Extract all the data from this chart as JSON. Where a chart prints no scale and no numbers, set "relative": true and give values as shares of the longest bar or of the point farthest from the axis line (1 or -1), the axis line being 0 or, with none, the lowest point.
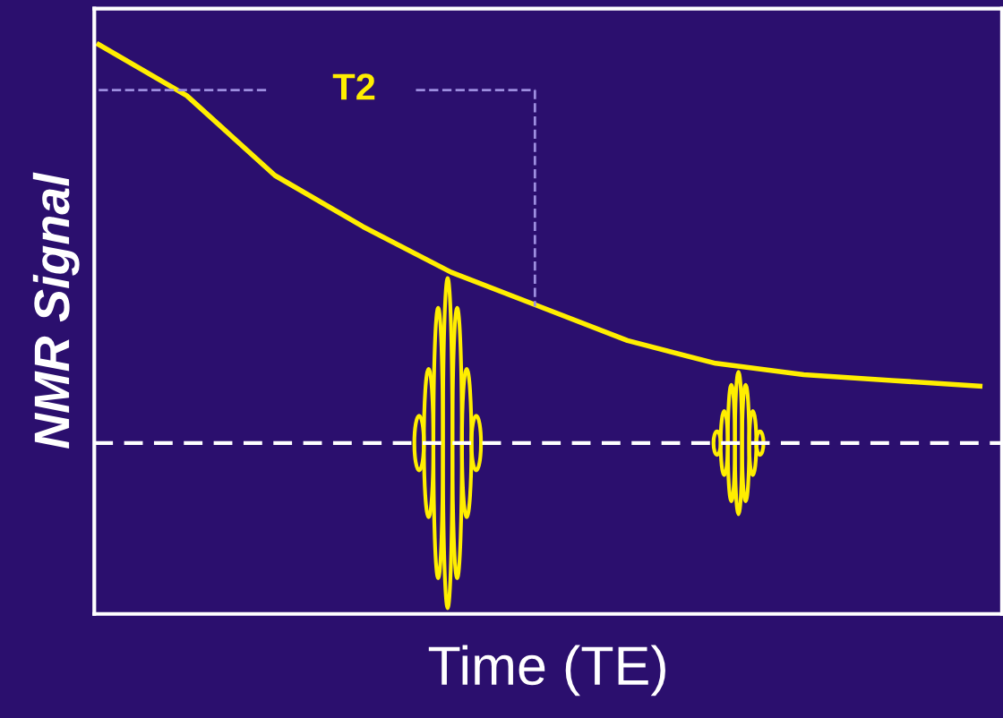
{
  "chart_data": {
    "type": "line",
    "relative": true,
    "xlabel": "Time (TE)",
    "ylabel": "NMR Signal",
    "categories": [
      null,
      null,
      null,
      null,
      null,
      null,
      null,
      null,
      null,
      null,
      null
    ],
    "series": [
      {
        "color": "#ffee00",
        "values": [
          1,
          0.91,
          0.77,
          0.68,
          0.6,
          0.54,
          0.48,
          0.44,
          0.42,
          0.41,
          0.4
        ]
      }
    ],
    "ref_lines": [
      {
        "axis": "y",
        "value": 0.3,
        "color": "#ffffff",
        "line_style": "dashed"
      }
    ],
    "annotations": [
      "T2"
    ],
    "grid": false,
    "legend": false,
    "marker": "none",
    "line_style": "solid",
    "tick_labels": false
  }
}
